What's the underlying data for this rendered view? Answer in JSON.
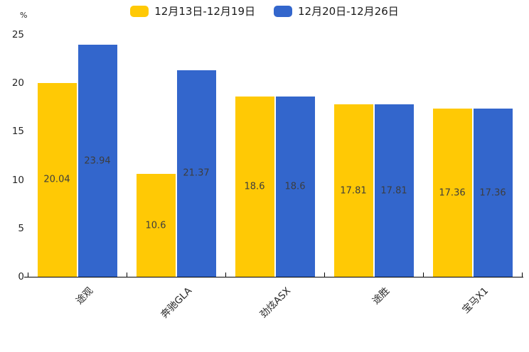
{
  "chart_data": {
    "type": "bar",
    "title": "",
    "categories": [
      "途观",
      "奔驰GLA",
      "劲炫ASX",
      "途胜",
      "宝马X1"
    ],
    "series": [
      {
        "name": "12月13日-12月19日",
        "color": "#FFC905",
        "values": [
          20.04,
          10.6,
          18.6,
          17.81,
          17.36
        ]
      },
      {
        "name": "12月20日-12月26日",
        "color": "#3366CC",
        "values": [
          23.94,
          21.37,
          18.6,
          17.81,
          17.36
        ]
      }
    ],
    "xlabel": "",
    "ylabel": "%",
    "ylim": [
      0,
      25
    ],
    "yticks": [
      0,
      5,
      10,
      15,
      20,
      25
    ],
    "grid": false,
    "legend_position": "top-center",
    "value_labels": "inside-center",
    "xtick_rotation": 45,
    "axis_color": "#000000",
    "text_color": "#262626",
    "label_color": "#3d3d3d"
  }
}
